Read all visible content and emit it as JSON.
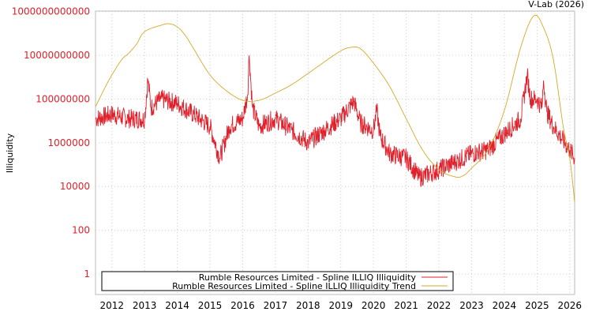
{
  "chart_data": {
    "type": "line",
    "title": "V-Lab (2026)",
    "ylabel": "Illiquidity",
    "xlabel": "",
    "yscale": "log",
    "ylim_log10": [
      -0.8,
      12
    ],
    "xlim": [
      2011.5,
      2026.15
    ],
    "y_ticks": [
      {
        "log10": 12,
        "label": "1000000000000"
      },
      {
        "log10": 10,
        "label": "10000000000"
      },
      {
        "log10": 8,
        "label": "100000000"
      },
      {
        "log10": 6,
        "label": "1000000"
      },
      {
        "log10": 4,
        "label": "10000"
      },
      {
        "log10": 2,
        "label": "100"
      },
      {
        "log10": 0,
        "label": "1"
      }
    ],
    "x_ticks": [
      "2012",
      "2013",
      "2014",
      "2015",
      "2016",
      "2017",
      "2018",
      "2019",
      "2020",
      "2021",
      "2022",
      "2023",
      "2024",
      "2025",
      "2026"
    ],
    "grid": true,
    "legend_position": "bottom",
    "series": [
      {
        "name": "Rumble Resources Limited - Spline ILLIQ Illiquidity",
        "color": "#e0202a",
        "noisy": true,
        "points_x_log10y": [
          [
            2011.5,
            7.1
          ],
          [
            2012,
            7.3
          ],
          [
            2012.5,
            7.1
          ],
          [
            2013,
            7.1
          ],
          [
            2013.1,
            8.9
          ],
          [
            2013.2,
            7.6
          ],
          [
            2013.5,
            8.0
          ],
          [
            2014,
            7.8
          ],
          [
            2014.5,
            7.3
          ],
          [
            2015,
            6.75
          ],
          [
            2015.3,
            5.3
          ],
          [
            2015.6,
            6.75
          ],
          [
            2016,
            7.1
          ],
          [
            2016.15,
            8.2
          ],
          [
            2016.2,
            10.0
          ],
          [
            2016.3,
            7.6
          ],
          [
            2016.5,
            6.75
          ],
          [
            2017,
            7.1
          ],
          [
            2017.5,
            6.57
          ],
          [
            2018,
            6.0
          ],
          [
            2018.5,
            6.57
          ],
          [
            2019,
            7.1
          ],
          [
            2019.4,
            7.9
          ],
          [
            2019.6,
            6.9
          ],
          [
            2020,
            6.57
          ],
          [
            2020.1,
            7.5
          ],
          [
            2020.2,
            6.3
          ],
          [
            2020.5,
            5.5
          ],
          [
            2021,
            5.3
          ],
          [
            2021.4,
            4.4
          ],
          [
            2022,
            4.77
          ],
          [
            2022.5,
            5.13
          ],
          [
            2023,
            5.5
          ],
          [
            2023.5,
            5.67
          ],
          [
            2024,
            6.4
          ],
          [
            2024.5,
            7.1
          ],
          [
            2024.7,
            9.1
          ],
          [
            2024.8,
            8.0
          ],
          [
            2025,
            8.0
          ],
          [
            2025.15,
            7.6
          ],
          [
            2025.2,
            8.85
          ],
          [
            2025.3,
            7.4
          ],
          [
            2025.5,
            6.75
          ],
          [
            2026,
            5.67
          ],
          [
            2026.15,
            5.3
          ]
        ]
      },
      {
        "name": "Rumble Resources Limited - Spline ILLIQ Illiquidity Trend",
        "color": "#d4aa2a",
        "noisy": false,
        "points_x_log10y": [
          [
            2011.5,
            7.65
          ],
          [
            2011.8,
            8.55
          ],
          [
            2012,
            9.1
          ],
          [
            2012.3,
            9.8
          ],
          [
            2012.5,
            10.07
          ],
          [
            2012.75,
            10.5
          ],
          [
            2013,
            11.08
          ],
          [
            2013.5,
            11.37
          ],
          [
            2013.75,
            11.44
          ],
          [
            2014,
            11.3
          ],
          [
            2014.25,
            10.9
          ],
          [
            2014.5,
            10.3
          ],
          [
            2015,
            9.1
          ],
          [
            2015.5,
            8.38
          ],
          [
            2016,
            7.94
          ],
          [
            2016.5,
            7.94
          ],
          [
            2017,
            8.27
          ],
          [
            2017.5,
            8.66
          ],
          [
            2018,
            9.17
          ],
          [
            2018.5,
            9.7
          ],
          [
            2019,
            10.2
          ],
          [
            2019.3,
            10.36
          ],
          [
            2019.6,
            10.3
          ],
          [
            2020,
            9.64
          ],
          [
            2020.5,
            8.56
          ],
          [
            2021,
            7.1
          ],
          [
            2021.5,
            5.67
          ],
          [
            2022,
            4.77
          ],
          [
            2022.5,
            4.44
          ],
          [
            2022.75,
            4.5
          ],
          [
            2023,
            4.84
          ],
          [
            2023.5,
            5.67
          ],
          [
            2024,
            7.47
          ],
          [
            2024.5,
            10.36
          ],
          [
            2024.9,
            11.8
          ],
          [
            2025.2,
            11.26
          ],
          [
            2025.5,
            9.8
          ],
          [
            2025.8,
            6.75
          ],
          [
            2026,
            5.3
          ],
          [
            2026.15,
            3.3
          ]
        ]
      }
    ]
  }
}
